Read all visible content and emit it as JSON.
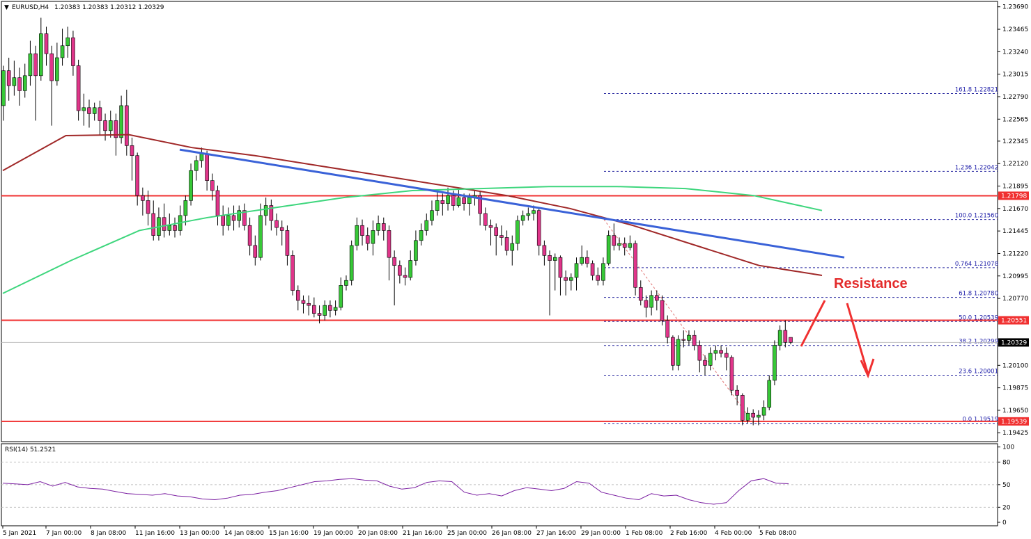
{
  "header": {
    "symbol": "EURUSD,H4",
    "ohlc": "1.20383 1.20383 1.20312 1.20329"
  },
  "rsi": {
    "label": "RSI(14) 51.2521",
    "ticks": [
      "100",
      "80",
      "50",
      "20",
      "0"
    ]
  },
  "colors": {
    "bull": "#37c837",
    "bear": "#e0358a",
    "trend": "#3a62d8",
    "ma_slow": "#a02828",
    "ma_fast": "#3ed67d",
    "level": "#f03030",
    "fib": "#2828a0",
    "rsi": "#7b1fa2"
  },
  "annotation": {
    "text": "Resistance"
  },
  "chart_data": {
    "type": "candlestick",
    "title": "EURUSD,H4",
    "ylim": [
      1.1935,
      1.2373
    ],
    "y_ticks": [
      "1.23690",
      "1.23465",
      "1.23240",
      "1.23015",
      "1.22790",
      "1.22565",
      "1.22345",
      "1.22120",
      "1.21895",
      "1.21670",
      "1.21445",
      "1.21220",
      "1.20995",
      "1.20770",
      "1.20100",
      "1.19875",
      "1.19650",
      "1.19425"
    ],
    "x_ticks": [
      "5 Jan 2021",
      "7 Jan 00:00",
      "8 Jan 08:00",
      "11 Jan 16:00",
      "13 Jan 00:00",
      "14 Jan 08:00",
      "15 Jan 16:00",
      "19 Jan 00:00",
      "20 Jan 08:00",
      "21 Jan 16:00",
      "25 Jan 00:00",
      "26 Jan 08:00",
      "27 Jan 16:00",
      "29 Jan 00:00",
      "1 Feb 08:00",
      "2 Feb 16:00",
      "4 Feb 00:00",
      "5 Feb 08:00"
    ],
    "price_tags": [
      {
        "value": 1.21798,
        "label": "1.21798",
        "style": "red"
      },
      {
        "value": 1.20551,
        "label": "1.20551",
        "style": "red"
      },
      {
        "value": 1.20329,
        "label": "1.20329",
        "style": "dark"
      },
      {
        "value": 1.19539,
        "label": "1.19539",
        "style": "red"
      }
    ],
    "horizontal_levels": [
      1.21798,
      1.20551,
      1.19539
    ],
    "current_price": 1.20329,
    "fibonacci": [
      {
        "label": "161.8 1.22821",
        "value": 1.22821
      },
      {
        "label": "1.236 1.22042",
        "value": 1.22042
      },
      {
        "label": "100.0 1.21560",
        "value": 1.2156
      },
      {
        "label": "0.764 1.21078",
        "value": 1.21078
      },
      {
        "label": "61.8 1.20780",
        "value": 1.2078
      },
      {
        "label": "50.0 1.20539",
        "value": 1.20539
      },
      {
        "label": "38.2 1.20299",
        "value": 1.20299
      },
      {
        "label": "23.6 1.20001",
        "value": 1.20001
      },
      {
        "label": "0.0 1.19519",
        "value": 1.19519
      }
    ],
    "candles": [
      [
        1.227,
        1.2305,
        1.231,
        1.2255
      ],
      [
        1.2305,
        1.229,
        1.2318,
        1.2275
      ],
      [
        1.229,
        1.2298,
        1.2315,
        1.228
      ],
      [
        1.2298,
        1.2285,
        1.2308,
        1.227
      ],
      [
        1.2285,
        1.23,
        1.2312,
        1.2278
      ],
      [
        1.23,
        1.2322,
        1.2335,
        1.229
      ],
      [
        1.2322,
        1.23,
        1.233,
        1.2255
      ],
      [
        1.23,
        1.2342,
        1.2358,
        1.2295
      ],
      [
        1.2342,
        1.2322,
        1.2349,
        1.231
      ],
      [
        1.2322,
        1.2295,
        1.233,
        1.225
      ],
      [
        1.2295,
        1.2318,
        1.2333,
        1.229
      ],
      [
        1.2318,
        1.233,
        1.2347,
        1.231
      ],
      [
        1.233,
        1.2338,
        1.2349,
        1.2318
      ],
      [
        1.2338,
        1.231,
        1.2345,
        1.23
      ],
      [
        1.231,
        1.2265,
        1.2316,
        1.2255
      ],
      [
        1.2265,
        1.2268,
        1.2282,
        1.225
      ],
      [
        1.2268,
        1.2262,
        1.2276,
        1.2248
      ],
      [
        1.2262,
        1.2268,
        1.2273,
        1.2255
      ],
      [
        1.2268,
        1.2255,
        1.2275,
        1.224
      ],
      [
        1.2255,
        1.2245,
        1.2262,
        1.2235
      ],
      [
        1.2245,
        1.2255,
        1.2265,
        1.2238
      ],
      [
        1.2255,
        1.2238,
        1.2262,
        1.222
      ],
      [
        1.2238,
        1.227,
        1.228,
        1.2232
      ],
      [
        1.227,
        1.223,
        1.2286,
        1.222
      ],
      [
        1.223,
        1.222,
        1.2238,
        1.2195
      ],
      [
        1.222,
        1.218,
        1.2223,
        1.217
      ],
      [
        1.218,
        1.2175,
        1.2188,
        1.216
      ],
      [
        1.2175,
        1.2162,
        1.2185,
        1.215
      ],
      [
        1.2162,
        1.214,
        1.2175,
        1.2135
      ],
      [
        1.214,
        1.2158,
        1.2168,
        1.2135
      ],
      [
        1.2158,
        1.2145,
        1.2172,
        1.2138
      ],
      [
        1.2145,
        1.215,
        1.2162,
        1.214
      ],
      [
        1.215,
        1.2145,
        1.2158,
        1.2138
      ],
      [
        1.2145,
        1.216,
        1.217,
        1.214
      ],
      [
        1.216,
        1.2175,
        1.218,
        1.215
      ],
      [
        1.2175,
        1.2205,
        1.2212,
        1.217
      ],
      [
        1.2205,
        1.2215,
        1.222,
        1.2195
      ],
      [
        1.2215,
        1.2222,
        1.2228,
        1.2208
      ],
      [
        1.2222,
        1.2195,
        1.2225,
        1.2185
      ],
      [
        1.2195,
        1.2185,
        1.2202,
        1.2175
      ],
      [
        1.2185,
        1.216,
        1.219,
        1.215
      ],
      [
        1.216,
        1.215,
        1.217,
        1.214
      ],
      [
        1.215,
        1.216,
        1.2168,
        1.2145
      ],
      [
        1.216,
        1.2155,
        1.217,
        1.2145
      ],
      [
        1.2155,
        1.2165,
        1.217,
        1.2148
      ],
      [
        1.2165,
        1.215,
        1.2172,
        1.2145
      ],
      [
        1.215,
        1.213,
        1.2158,
        1.212
      ],
      [
        1.213,
        1.2118,
        1.214,
        1.211
      ],
      [
        1.2118,
        1.216,
        1.2172,
        1.2115
      ],
      [
        1.216,
        1.217,
        1.2178,
        1.215
      ],
      [
        1.217,
        1.2155,
        1.2176,
        1.2145
      ],
      [
        1.2155,
        1.2148,
        1.2162,
        1.214
      ],
      [
        1.2148,
        1.2145,
        1.2155,
        1.213
      ],
      [
        1.2145,
        1.212,
        1.215,
        1.211
      ],
      [
        1.212,
        1.2085,
        1.2125,
        1.208
      ],
      [
        1.2085,
        1.2075,
        1.209,
        1.2065
      ],
      [
        1.2075,
        1.2072,
        1.208,
        1.2062
      ],
      [
        1.2072,
        1.207,
        1.208,
        1.206
      ],
      [
        1.207,
        1.2062,
        1.2078,
        1.2058
      ],
      [
        1.2062,
        1.206,
        1.207,
        1.2052
      ],
      [
        1.206,
        1.207,
        1.2075,
        1.2055
      ],
      [
        1.207,
        1.2065,
        1.2075,
        1.2058
      ],
      [
        1.2065,
        1.2068,
        1.2075,
        1.206
      ],
      [
        1.2068,
        1.209,
        1.2098,
        1.2065
      ],
      [
        1.209,
        1.2095,
        1.21,
        1.2085
      ],
      [
        1.2095,
        1.213,
        1.2135,
        1.209
      ],
      [
        1.213,
        1.215,
        1.2158,
        1.2125
      ],
      [
        1.215,
        1.214,
        1.2156,
        1.213
      ],
      [
        1.214,
        1.2132,
        1.2148,
        1.2125
      ],
      [
        1.2132,
        1.2145,
        1.2155,
        1.212
      ],
      [
        1.2145,
        1.2152,
        1.216,
        1.214
      ],
      [
        1.2152,
        1.2145,
        1.2158,
        1.2135
      ],
      [
        1.2145,
        1.2118,
        1.215,
        1.2095
      ],
      [
        1.2118,
        1.211,
        1.2125,
        1.207
      ],
      [
        1.211,
        1.21,
        1.2115,
        1.2092
      ],
      [
        1.21,
        1.2098,
        1.2108,
        1.209
      ],
      [
        1.2098,
        1.2115,
        1.2125,
        1.2095
      ],
      [
        1.2115,
        1.2135,
        1.2145,
        1.211
      ],
      [
        1.2135,
        1.2145,
        1.2152,
        1.213
      ],
      [
        1.2145,
        1.2155,
        1.2162,
        1.214
      ],
      [
        1.2155,
        1.2165,
        1.2175,
        1.215
      ],
      [
        1.2165,
        1.2175,
        1.2185,
        1.216
      ],
      [
        1.2175,
        1.2172,
        1.2182,
        1.216
      ],
      [
        1.2172,
        1.218,
        1.2188,
        1.2165
      ],
      [
        1.218,
        1.217,
        1.2185,
        1.2165
      ],
      [
        1.217,
        1.2178,
        1.2188,
        1.2168
      ],
      [
        1.2178,
        1.2172,
        1.2182,
        1.2165
      ],
      [
        1.2172,
        1.2178,
        1.2182,
        1.216
      ],
      [
        1.2178,
        1.218,
        1.2185,
        1.217
      ],
      [
        1.218,
        1.2162,
        1.2185,
        1.215
      ],
      [
        1.2162,
        1.215,
        1.2168,
        1.2145
      ],
      [
        1.215,
        1.2148,
        1.2156,
        1.213
      ],
      [
        1.2148,
        1.214,
        1.2152,
        1.212
      ],
      [
        1.214,
        1.2138,
        1.215,
        1.213
      ],
      [
        1.2138,
        1.2125,
        1.2145,
        1.212
      ],
      [
        1.2125,
        1.2132,
        1.214,
        1.211
      ],
      [
        1.2132,
        1.2155,
        1.216,
        1.2125
      ],
      [
        1.2155,
        1.216,
        1.2165,
        1.215
      ],
      [
        1.216,
        1.2162,
        1.2168,
        1.2155
      ],
      [
        1.2162,
        1.2165,
        1.217,
        1.2155
      ],
      [
        1.2165,
        1.213,
        1.2168,
        1.212
      ],
      [
        1.213,
        1.212,
        1.2135,
        1.211
      ],
      [
        1.212,
        1.2115,
        1.2125,
        1.206
      ],
      [
        1.2115,
        1.2118,
        1.2122,
        1.2085
      ],
      [
        1.2118,
        1.2098,
        1.212,
        1.208
      ],
      [
        1.2098,
        1.2095,
        1.2105,
        1.208
      ],
      [
        1.2095,
        1.2098,
        1.2102,
        1.2085
      ],
      [
        1.2098,
        1.2112,
        1.2118,
        1.2085
      ],
      [
        1.2112,
        1.2118,
        1.213,
        1.211
      ],
      [
        1.2118,
        1.2112,
        1.2125,
        1.2108
      ],
      [
        1.2112,
        1.21,
        1.2115,
        1.2095
      ],
      [
        1.21,
        1.2095,
        1.2108,
        1.209
      ],
      [
        1.2095,
        1.2112,
        1.2118,
        1.209
      ],
      [
        1.2112,
        1.214,
        1.2145,
        1.211
      ],
      [
        1.214,
        1.213,
        1.2152,
        1.2125
      ],
      [
        1.213,
        1.2132,
        1.2138,
        1.2125
      ],
      [
        1.2132,
        1.2128,
        1.2138,
        1.212
      ],
      [
        1.2128,
        1.2132,
        1.214,
        1.2125
      ],
      [
        1.2132,
        1.2088,
        1.2135,
        1.208
      ],
      [
        1.2088,
        1.2075,
        1.2095,
        1.207
      ],
      [
        1.2075,
        1.2068,
        1.208,
        1.2058
      ],
      [
        1.2068,
        1.208,
        1.2085,
        1.206
      ],
      [
        1.208,
        1.2075,
        1.2085,
        1.2065
      ],
      [
        1.2075,
        1.2055,
        1.208,
        1.205
      ],
      [
        1.2055,
        1.2038,
        1.206,
        1.2032
      ],
      [
        1.2038,
        1.201,
        1.204,
        1.2005
      ],
      [
        1.201,
        1.2036,
        1.204,
        1.2005
      ],
      [
        1.2036,
        1.2035,
        1.2045,
        1.2028
      ],
      [
        1.2035,
        1.204,
        1.2045,
        1.203
      ],
      [
        1.204,
        1.203,
        1.2045,
        1.2025
      ],
      [
        1.203,
        1.2015,
        1.2035,
        1.2003
      ],
      [
        1.2015,
        1.201,
        1.202,
        1.2
      ],
      [
        1.201,
        1.2022,
        1.2028,
        1.2005
      ],
      [
        1.2022,
        1.2025,
        1.203,
        1.2015
      ],
      [
        1.2025,
        1.2022,
        1.203,
        1.2018
      ],
      [
        1.2022,
        1.2018,
        1.2028,
        1.2005
      ],
      [
        1.2018,
        1.1985,
        1.202,
        1.198
      ],
      [
        1.1985,
        1.198,
        1.199,
        1.197
      ],
      [
        1.198,
        1.1955,
        1.1982,
        1.195
      ],
      [
        1.1955,
        1.1962,
        1.1968,
        1.1952
      ],
      [
        1.1962,
        1.1958,
        1.1966,
        1.195
      ],
      [
        1.1958,
        1.196,
        1.1965,
        1.195
      ],
      [
        1.196,
        1.1968,
        1.1975,
        1.1955
      ],
      [
        1.1968,
        1.1995,
        1.2,
        1.1965
      ],
      [
        1.1995,
        1.203,
        1.2035,
        1.199
      ],
      [
        1.203,
        1.2045,
        1.205,
        1.2025
      ],
      [
        1.2045,
        1.2033,
        1.2055,
        1.2028
      ],
      [
        1.2038,
        1.2033,
        1.2038,
        1.2031
      ]
    ],
    "ma_slow": [
      1.2205,
      1.224,
      1.2241,
      1.2228,
      1.222,
      1.221,
      1.22,
      1.219,
      1.218,
      1.2167,
      1.215,
      1.213,
      1.211,
      1.21
    ],
    "ma_fast": [
      1.2082,
      1.2115,
      1.2145,
      1.2158,
      1.2168,
      1.2178,
      1.2185,
      1.2187,
      1.2189,
      1.2189,
      1.2187,
      1.218,
      1.2165
    ],
    "rsi_values": [
      52,
      51,
      50,
      54,
      48,
      53,
      47,
      45,
      44,
      41,
      38,
      37,
      36,
      38,
      35,
      34,
      31,
      30,
      32,
      36,
      37,
      40,
      42,
      46,
      50,
      54,
      55,
      57,
      58,
      56,
      55,
      48,
      44,
      46,
      53,
      55,
      54,
      40,
      36,
      38,
      35,
      42,
      46,
      44,
      42,
      45,
      54,
      52,
      40,
      36,
      32,
      30,
      38,
      35,
      36,
      30,
      26,
      24,
      26,
      42,
      55,
      58,
      52,
      51.25
    ]
  }
}
